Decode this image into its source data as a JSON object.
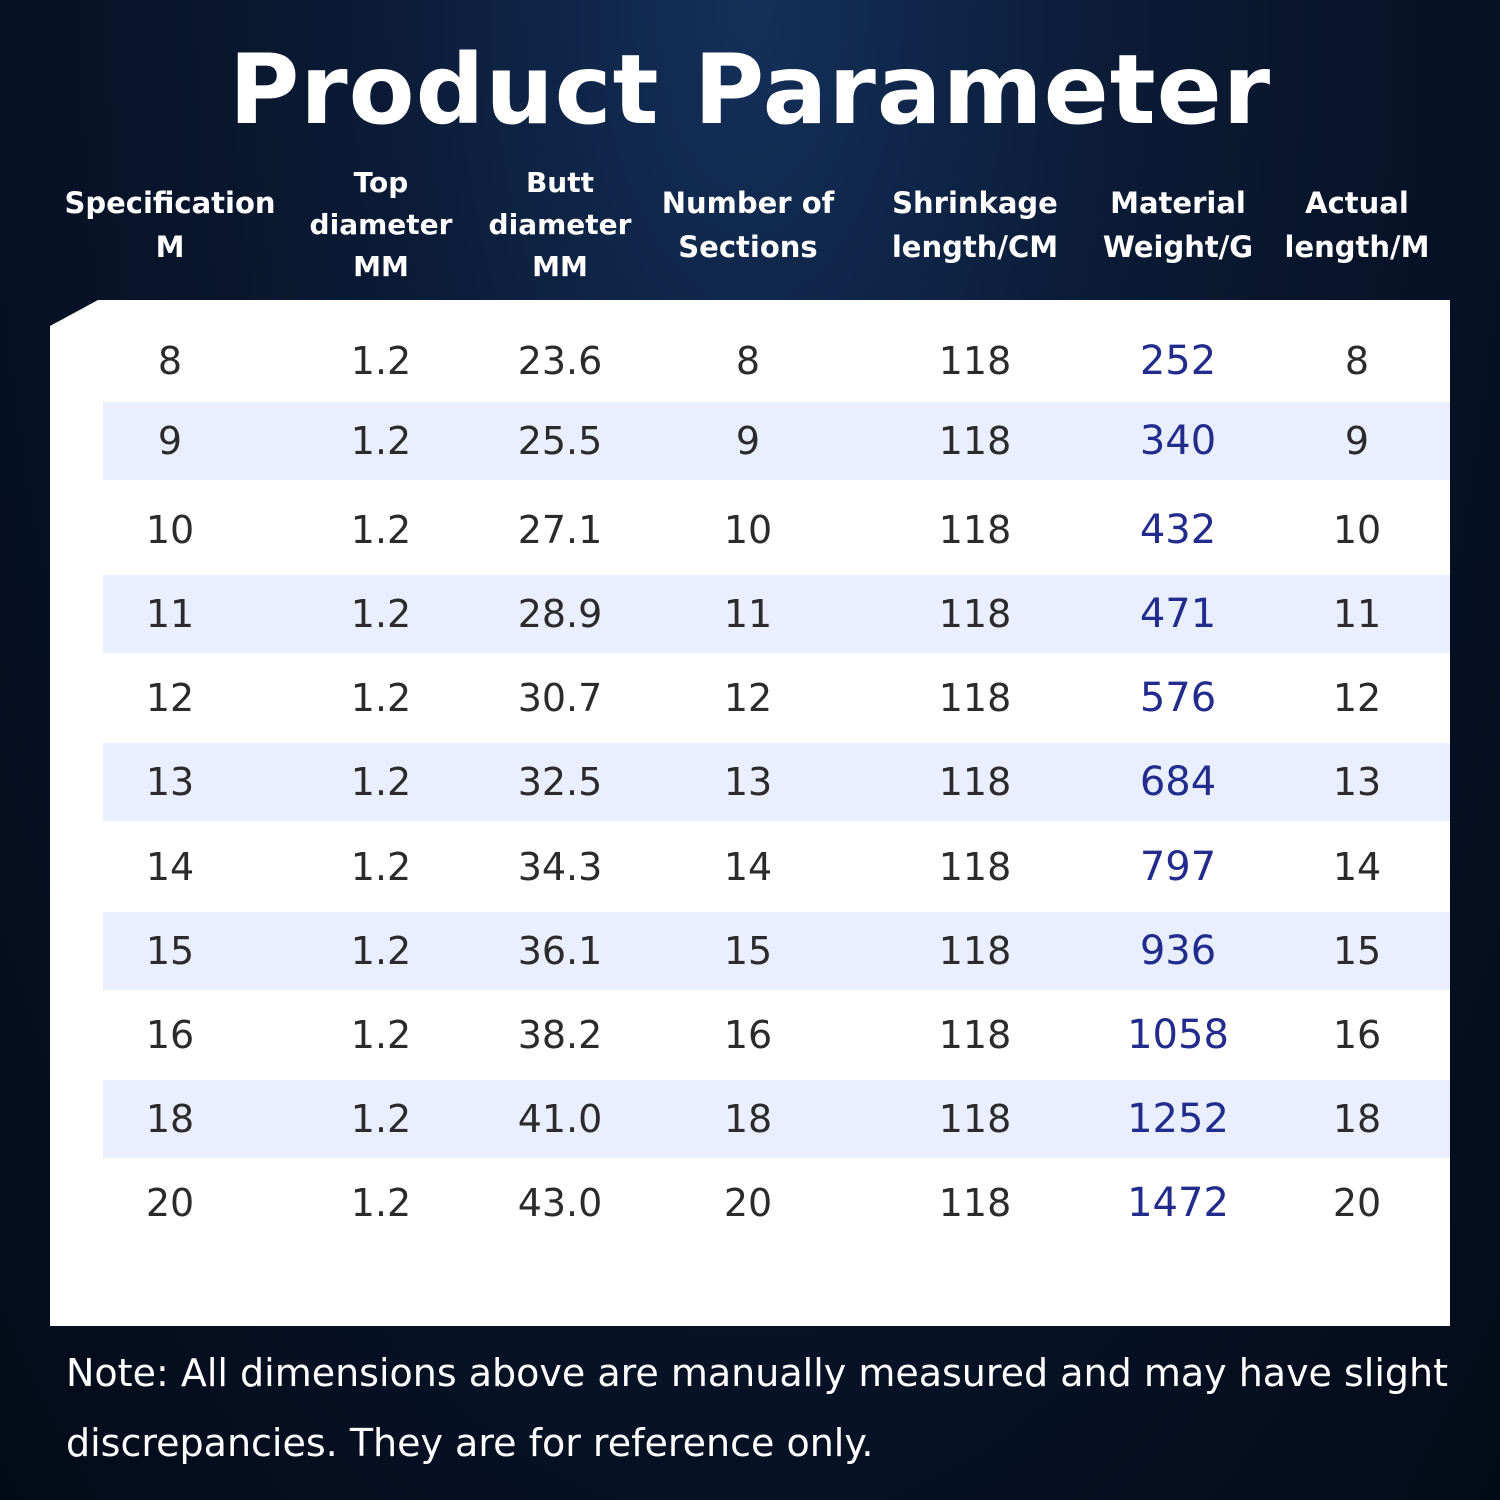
{
  "title": "Product Parameter",
  "columns": [
    {
      "key": "spec",
      "label": "Specification\nM"
    },
    {
      "key": "top",
      "label": "Top\ndiameter\nMM"
    },
    {
      "key": "butt",
      "label": "Butt\ndiameter\nMM"
    },
    {
      "key": "sections",
      "label": "Number of\nSections"
    },
    {
      "key": "shrink",
      "label": "Shrinkage\nlength/CM"
    },
    {
      "key": "weight",
      "label": "Material\nWeight/G"
    },
    {
      "key": "actual",
      "label": "Actual\nlength/M"
    }
  ],
  "rows": [
    [
      "8",
      "1.2",
      "23.6",
      "8",
      "118",
      "252",
      "8"
    ],
    [
      "9",
      "1.2",
      "25.5",
      "9",
      "118",
      "340",
      "9"
    ],
    [
      "10",
      "1.2",
      "27.1",
      "10",
      "118",
      "432",
      "10"
    ],
    [
      "11",
      "1.2",
      "28.9",
      "11",
      "118",
      "471",
      "11"
    ],
    [
      "12",
      "1.2",
      "30.7",
      "12",
      "118",
      "576",
      "12"
    ],
    [
      "13",
      "1.2",
      "32.5",
      "13",
      "118",
      "684",
      "13"
    ],
    [
      "14",
      "1.2",
      "34.3",
      "14",
      "118",
      "797",
      "14"
    ],
    [
      "15",
      "1.2",
      "36.1",
      "15",
      "118",
      "936",
      "15"
    ],
    [
      "16",
      "1.2",
      "38.2",
      "16",
      "118",
      "1058",
      "16"
    ],
    [
      "18",
      "1.2",
      "41.0",
      "18",
      "118",
      "1252",
      "18"
    ],
    [
      "20",
      "1.2",
      "43.0",
      "20",
      "118",
      "1472",
      "20"
    ]
  ],
  "note": "Note: All dimensions above are manually measured and may have slight discrepancies. They are for reference only.",
  "colors": {
    "weight_text": "#232c8c",
    "row_shade": "#e9efff",
    "background": "#071226"
  }
}
